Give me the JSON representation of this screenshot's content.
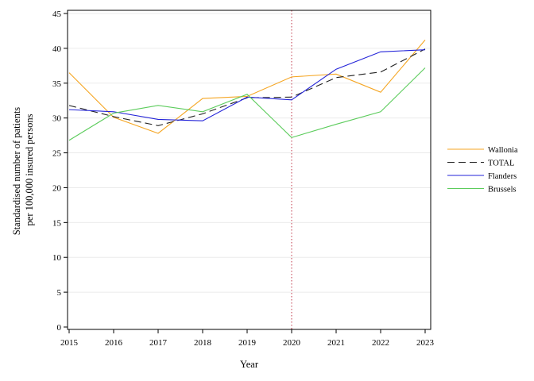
{
  "chart_data": {
    "type": "line",
    "title": "",
    "xlabel": "Year",
    "ylabel_lines": [
      "Standardised number of patients",
      "per 100,000 insured persons"
    ],
    "x": [
      2015,
      2016,
      2017,
      2018,
      2019,
      2020,
      2021,
      2022,
      2023
    ],
    "xticks": [
      "2015",
      "2016",
      "2017",
      "2018",
      "2019",
      "2020",
      "2021",
      "2022",
      "2023"
    ],
    "ylim": [
      0,
      45
    ],
    "yticks": [
      "0",
      "5",
      "10",
      "15",
      "20",
      "25",
      "30",
      "35",
      "40",
      "45"
    ],
    "grid": "horizontal",
    "legend_position": "right",
    "reference_line": {
      "x": 2020,
      "color": "#c0394b",
      "style": "dotted"
    },
    "series": [
      {
        "name": "Wallonia",
        "color": "#f5a623",
        "dash": "solid",
        "values": [
          36.5,
          30.1,
          27.8,
          32.8,
          33.1,
          35.9,
          36.3,
          33.7,
          41.2
        ]
      },
      {
        "name": "TOTAL",
        "color": "#222222",
        "dash": "dashed",
        "values": [
          31.8,
          30.2,
          28.9,
          30.6,
          32.9,
          33.0,
          35.8,
          36.6,
          39.9
        ]
      },
      {
        "name": "Flanders",
        "color": "#2323d8",
        "dash": "solid",
        "values": [
          31.2,
          30.9,
          29.8,
          29.6,
          33.0,
          32.6,
          37.0,
          39.5,
          39.8
        ]
      },
      {
        "name": "Brussels",
        "color": "#5ccc5c",
        "dash": "solid",
        "values": [
          26.8,
          30.7,
          31.8,
          30.9,
          33.4,
          27.2,
          29.1,
          30.9,
          37.2
        ]
      }
    ]
  }
}
